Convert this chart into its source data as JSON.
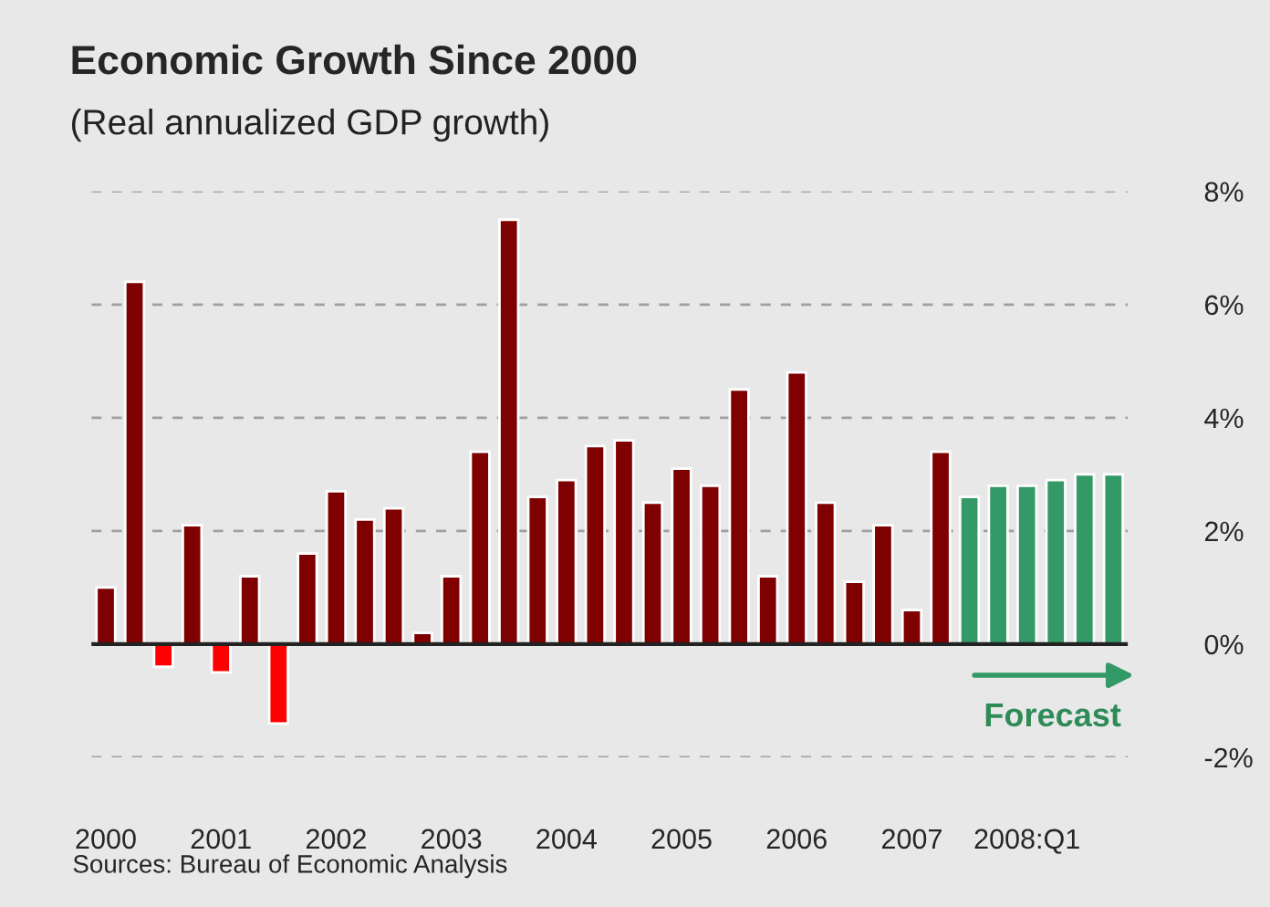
{
  "chart_data": {
    "type": "bar",
    "title": "Economic Growth Since 2000",
    "subtitle": "(Real annualized GDP growth)",
    "categories": [
      "2000",
      null,
      null,
      null,
      "2001",
      null,
      null,
      null,
      "2002",
      null,
      null,
      null,
      "2003",
      null,
      null,
      null,
      "2004",
      null,
      null,
      null,
      "2005",
      null,
      null,
      null,
      "2006",
      null,
      null,
      null,
      "2007",
      null,
      null,
      null,
      "2008:Q1",
      null,
      null,
      null
    ],
    "values": [
      1.0,
      6.4,
      -0.4,
      2.1,
      -0.5,
      1.2,
      -1.4,
      1.6,
      2.7,
      2.2,
      2.4,
      0.2,
      1.2,
      3.4,
      7.5,
      2.6,
      2.9,
      3.5,
      3.6,
      2.5,
      3.1,
      2.8,
      4.5,
      1.2,
      4.8,
      2.5,
      1.1,
      2.1,
      0.6,
      3.4,
      2.6,
      2.8,
      2.8,
      2.9,
      3.0,
      3.0
    ],
    "colors": [
      "#7f0000",
      "#7f0000",
      "#ff0000",
      "#7f0000",
      "#ff0000",
      "#7f0000",
      "#ff0000",
      "#7f0000",
      "#7f0000",
      "#7f0000",
      "#7f0000",
      "#7f0000",
      "#7f0000",
      "#7f0000",
      "#7f0000",
      "#7f0000",
      "#7f0000",
      "#7f0000",
      "#7f0000",
      "#7f0000",
      "#7f0000",
      "#7f0000",
      "#7f0000",
      "#7f0000",
      "#7f0000",
      "#7f0000",
      "#7f0000",
      "#7f0000",
      "#7f0000",
      "#7f0000",
      "#339966",
      "#339966",
      "#339966",
      "#339966",
      "#339966",
      "#339966"
    ],
    "ylim": [
      -2,
      8
    ],
    "yticks": [
      {
        "value": -2,
        "label": "-2%"
      },
      {
        "value": 0,
        "label": "0%"
      },
      {
        "value": 2,
        "label": "2%"
      },
      {
        "value": 4,
        "label": "4%"
      },
      {
        "value": 6,
        "label": "6%"
      },
      {
        "value": 8,
        "label": "8%"
      }
    ],
    "grid": "y",
    "annotations": [
      "Forecast",
      "Sources: Bureau of Economic Analysis"
    ]
  }
}
